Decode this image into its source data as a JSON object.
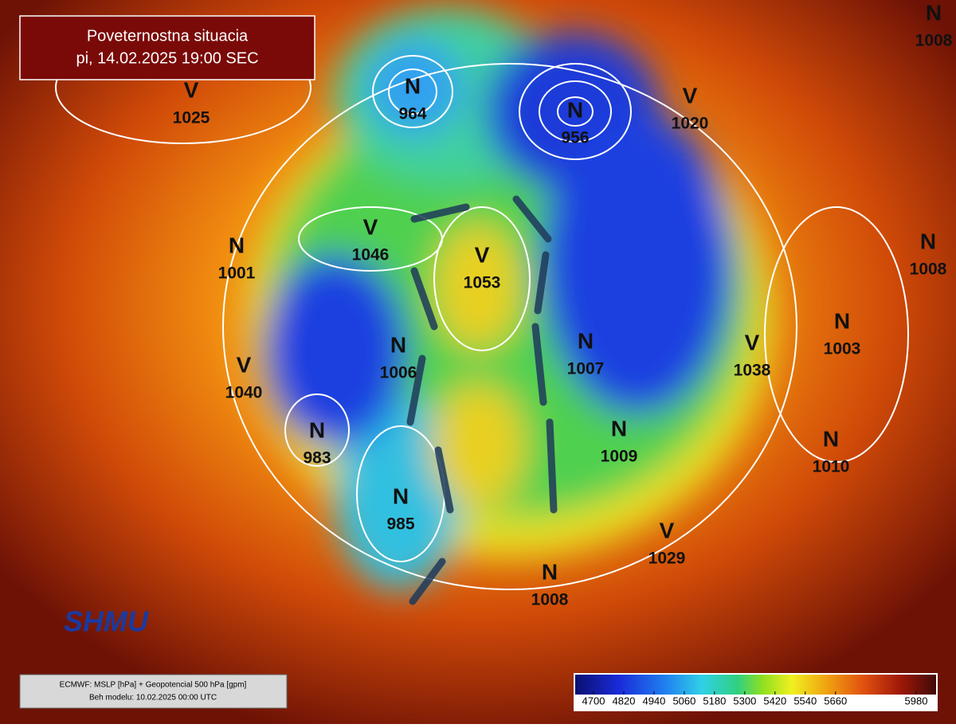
{
  "header": {
    "title": "Poveternostna situacia",
    "subtitle": "pi, 14.02.2025 19:00 SEC"
  },
  "centers": [
    {
      "type": "V",
      "value": 1025
    },
    {
      "type": "N",
      "value": 964
    },
    {
      "type": "N",
      "value": 956
    },
    {
      "type": "V",
      "value": 1020
    },
    {
      "type": "N",
      "value": 1008
    },
    {
      "type": "N",
      "value": 1001
    },
    {
      "type": "V",
      "value": 1046
    },
    {
      "type": "V",
      "value": 1053
    },
    {
      "type": "N",
      "value": 1006
    },
    {
      "type": "N",
      "value": 1007
    },
    {
      "type": "V",
      "value": 1038
    },
    {
      "type": "N",
      "value": 1003
    },
    {
      "type": "V",
      "value": 1040
    },
    {
      "type": "N",
      "value": 983
    },
    {
      "type": "N",
      "value": 1009
    },
    {
      "type": "N",
      "value": 1010
    },
    {
      "type": "N",
      "value": 985
    },
    {
      "type": "V",
      "value": 1029
    },
    {
      "type": "N",
      "value": 1008
    },
    {
      "type": "N",
      "value": 1008
    }
  ],
  "logo": "SHMU",
  "footer": {
    "line1": "ECMWF: MSLP [hPa] + Geopotencial 500 hPa [gpm]",
    "line2": "Beh modelu: 10.02.2025 00:00 UTC"
  },
  "colorbar": {
    "ticks": [
      4700,
      4820,
      4940,
      5060,
      5180,
      5300,
      5420,
      5540,
      5660,
      5980
    ]
  }
}
